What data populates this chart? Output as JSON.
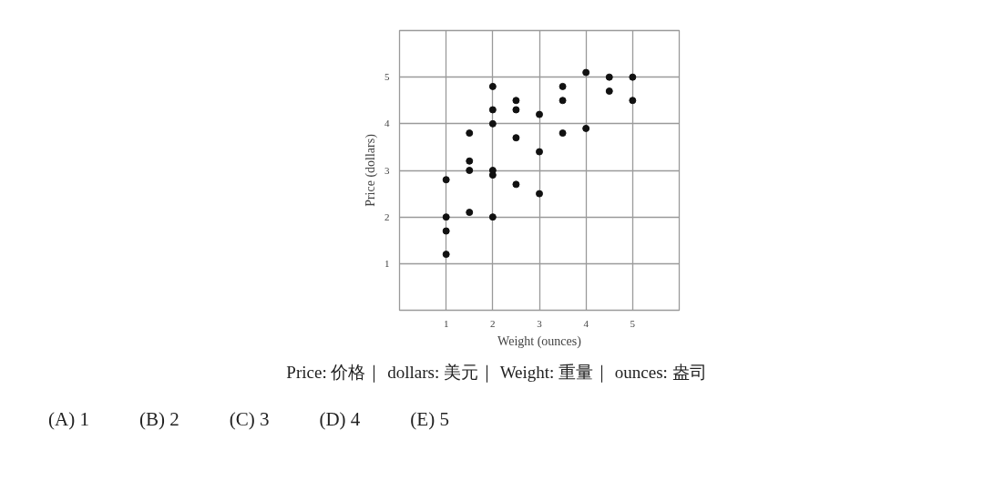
{
  "chart_data": {
    "type": "scatter",
    "xlabel": "Weight (ounces)",
    "ylabel": "Price (dollars)",
    "x": [
      1,
      1,
      1,
      1,
      1.5,
      1.5,
      1.5,
      1.5,
      2,
      2,
      2,
      2,
      2,
      2,
      2.5,
      2.5,
      2.5,
      2.5,
      3,
      3,
      3,
      3.5,
      3.5,
      3.5,
      4,
      4,
      4.5,
      4.5,
      5,
      5
    ],
    "values": [
      2.8,
      2.0,
      1.7,
      1.2,
      3.8,
      3.2,
      3.0,
      2.1,
      4.8,
      4.3,
      4.0,
      3.0,
      2.9,
      2.0,
      4.5,
      4.3,
      3.7,
      2.7,
      4.2,
      3.4,
      2.5,
      4.8,
      4.5,
      3.8,
      5.1,
      3.9,
      5.0,
      4.7,
      5.0,
      4.5
    ],
    "color": "#111111",
    "marker": "circle",
    "xlim": [
      0,
      6
    ],
    "ylim": [
      0,
      6
    ],
    "xticks": [
      1,
      2,
      3,
      4,
      5
    ],
    "yticks": [
      1,
      2,
      3,
      4,
      5
    ],
    "grid": true,
    "annotations": [
      "Price: 价格｜ dollars: 美元｜ Weight: 重量｜ ounces: 盎司",
      "(A) 1",
      "(B) 2",
      "(C) 3",
      "(D) 4",
      "(E) 5"
    ]
  }
}
